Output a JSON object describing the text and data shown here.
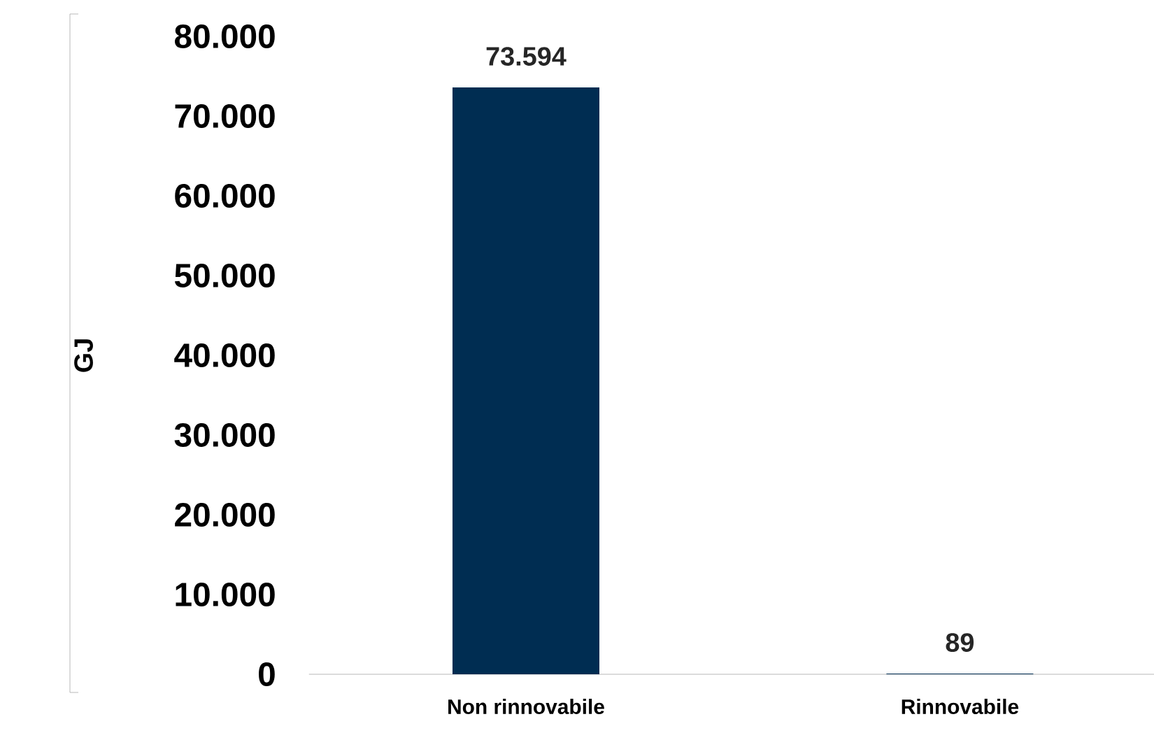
{
  "chart_data": {
    "type": "bar",
    "ylabel": "GJ",
    "categories": [
      "Non rinnovabile",
      "Rinnovabile"
    ],
    "values": [
      73594,
      89
    ],
    "value_labels": [
      "73.594",
      "89"
    ],
    "color": "#002d52",
    "ylim": [
      0,
      80000
    ],
    "yticks": [
      {
        "value": 0,
        "label": "0"
      },
      {
        "value": 10000,
        "label": "10.000"
      },
      {
        "value": 20000,
        "label": "20.000"
      },
      {
        "value": 30000,
        "label": "30.000"
      },
      {
        "value": 40000,
        "label": "40.000"
      },
      {
        "value": 50000,
        "label": "50.000"
      },
      {
        "value": 60000,
        "label": "60.000"
      },
      {
        "value": 70000,
        "label": "70.000"
      },
      {
        "value": 80000,
        "label": "80.000"
      }
    ]
  }
}
